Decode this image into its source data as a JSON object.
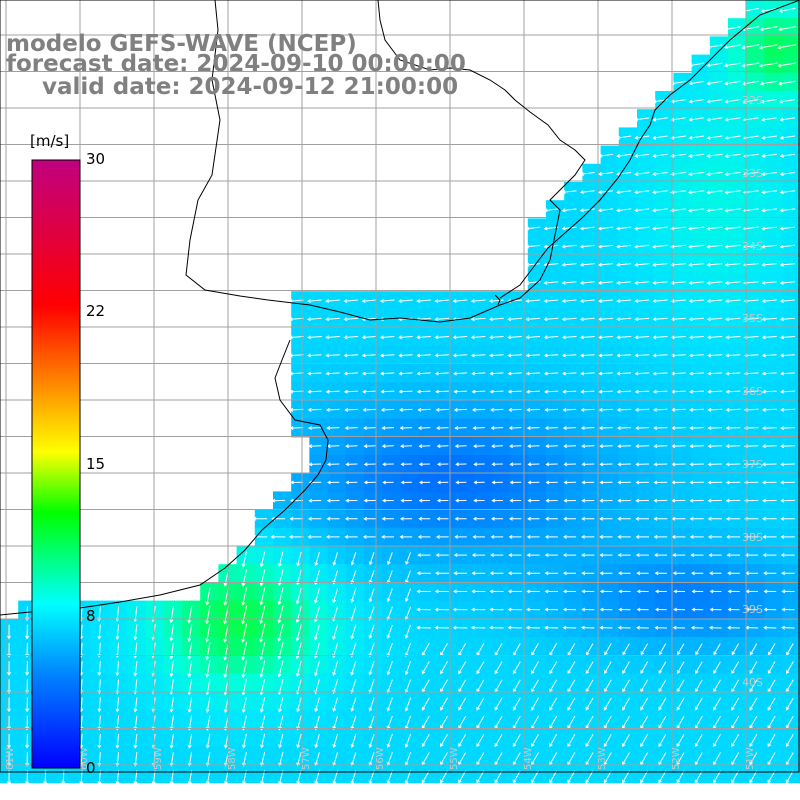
{
  "title": {
    "line1": "modelo GEFS-WAVE (NCEP)",
    "line2": "forecast date: 2024-09-10 00:00:00",
    "line3": "valid date: 2024-09-12 21:00:00"
  },
  "colorbar": {
    "unit": "[m/s]",
    "ticks": [
      "30",
      "22",
      "15",
      "8",
      "0"
    ],
    "tick_values": [
      30,
      22,
      15,
      8,
      0
    ],
    "min": 0,
    "max": 30,
    "colors": [
      "#0000ff",
      "#0080ff",
      "#00ffff",
      "#00ff00",
      "#ffff00",
      "#ff8000",
      "#ff0000",
      "#c00080"
    ]
  },
  "map": {
    "lat_labels": [
      "32S",
      "33S",
      "34S",
      "35S",
      "36S",
      "37S",
      "38S",
      "39S",
      "40S"
    ],
    "lon_labels": [
      "61W",
      "60W",
      "59W",
      "58W",
      "57W",
      "56W",
      "55W",
      "54W",
      "53W",
      "52W",
      "51W"
    ],
    "lon_range": [
      -61.5,
      -50.5
    ],
    "lat_range": [
      -41,
      -30.3
    ],
    "colors": {
      "land": "#ffffff",
      "grid": "#a0a0a0",
      "coast": "#000000",
      "arrows": "#ffffff"
    }
  }
}
